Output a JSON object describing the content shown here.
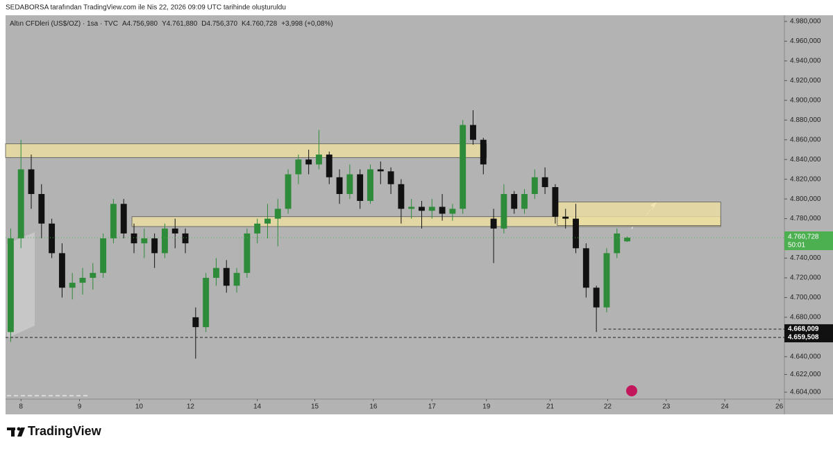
{
  "header": {
    "text": "SEDABORSA tarafından TradingView.com ile Nis 22, 2026 09:09 UTC tarihinde oluşturuldu"
  },
  "chart_data": {
    "type": "candlestick",
    "title": "Altın CFDleri (US$/OZ) · 1sa · TVC",
    "legend_items": [
      "A4.756,980",
      "Y4.761,880",
      "D4.756,370",
      "K4.760,728",
      "+3,998 (+0,08%)"
    ],
    "up_color": "#2e8b3a",
    "down_color": "#111111",
    "zone_color": "#ecdfa0",
    "x": [
      0,
      1,
      2,
      3,
      4,
      5,
      6,
      7,
      8,
      9,
      10,
      11,
      12,
      13,
      14,
      15,
      16,
      17,
      18,
      19,
      20,
      21,
      22,
      23,
      24,
      25,
      26,
      27,
      28,
      29,
      30,
      31,
      32,
      33,
      34,
      35,
      36,
      37,
      38,
      39,
      40,
      41,
      42,
      43,
      44,
      45,
      46,
      47,
      48,
      49,
      50,
      51,
      52,
      53,
      54,
      55,
      56,
      57,
      58,
      59,
      60
    ],
    "open": [
      4665,
      4760,
      4830,
      4805,
      4775,
      4745,
      4710,
      4715,
      4720,
      4725,
      4760,
      4795,
      4765,
      4755,
      4760,
      4745,
      4770,
      4765,
      4680,
      4670,
      4720,
      4730,
      4712,
      4725,
      4765,
      4775,
      4780,
      4790,
      4825,
      4840,
      4835,
      4845,
      4822,
      4805,
      4825,
      4798,
      4830,
      4828,
      4815,
      4790,
      4792,
      4788,
      4792,
      4785,
      4790,
      4875,
      4860,
      4780,
      4770,
      4805,
      4790,
      4805,
      4822,
      4812,
      4782,
      4780,
      4750,
      4710,
      4690,
      4745,
      4756.98
    ],
    "high": [
      4770,
      4860,
      4845,
      4815,
      4780,
      4755,
      4725,
      4730,
      4735,
      4765,
      4800,
      4800,
      4775,
      4770,
      4765,
      4775,
      4780,
      4770,
      4690,
      4725,
      4740,
      4738,
      4730,
      4770,
      4780,
      4795,
      4800,
      4830,
      4845,
      4850,
      4870,
      4848,
      4830,
      4835,
      4830,
      4835,
      4838,
      4832,
      4820,
      4800,
      4798,
      4800,
      4805,
      4795,
      4880,
      4890,
      4862,
      4790,
      4815,
      4808,
      4810,
      4830,
      4832,
      4815,
      4790,
      4795,
      4755,
      4712,
      4750,
      4770,
      4761.88
    ],
    "low": [
      4655,
      4750,
      4790,
      4760,
      4740,
      4700,
      4698,
      4703,
      4708,
      4720,
      4755,
      4760,
      4745,
      4740,
      4730,
      4740,
      4750,
      4745,
      4638,
      4665,
      4712,
      4705,
      4705,
      4720,
      4755,
      4760,
      4752,
      4785,
      4815,
      4825,
      4830,
      4815,
      4795,
      4800,
      4790,
      4795,
      4815,
      4805,
      4775,
      4780,
      4770,
      4780,
      4778,
      4778,
      4785,
      4855,
      4825,
      4735,
      4765,
      4785,
      4785,
      4800,
      4805,
      4775,
      4770,
      4745,
      4700,
      4665,
      4685,
      4740,
      4756.37
    ],
    "close": [
      4760,
      4830,
      4805,
      4775,
      4745,
      4710,
      4715,
      4720,
      4725,
      4760,
      4795,
      4765,
      4755,
      4760,
      4745,
      4770,
      4765,
      4755,
      4670,
      4720,
      4730,
      4712,
      4725,
      4765,
      4775,
      4780,
      4790,
      4825,
      4840,
      4835,
      4845,
      4822,
      4805,
      4825,
      4798,
      4830,
      4828,
      4815,
      4790,
      4792,
      4788,
      4792,
      4785,
      4790,
      4875,
      4860,
      4835,
      4770,
      4805,
      4790,
      4805,
      4822,
      4812,
      4782,
      4780,
      4750,
      4710,
      4690,
      4745,
      4765,
      4760.728
    ],
    "ylim": [
      4597.0,
      4986.3
    ],
    "yticks": [
      {
        "value": 4980,
        "label": "4.980,000"
      },
      {
        "value": 4960,
        "label": "4.960,000"
      },
      {
        "value": 4940,
        "label": "4.940,000"
      },
      {
        "value": 4920,
        "label": "4.920,000"
      },
      {
        "value": 4900,
        "label": "4.900,000"
      },
      {
        "value": 4880,
        "label": "4.880,000"
      },
      {
        "value": 4860,
        "label": "4.860,000"
      },
      {
        "value": 4840,
        "label": "4.840,000"
      },
      {
        "value": 4820,
        "label": "4.820,000"
      },
      {
        "value": 4800,
        "label": "4.800,000"
      },
      {
        "value": 4780,
        "label": "4.780,000"
      },
      {
        "value": 4760,
        "label": "4.760,000"
      },
      {
        "value": 4740,
        "label": "4.740,000"
      },
      {
        "value": 4720,
        "label": "4.720,000"
      },
      {
        "value": 4700,
        "label": "4.700,000"
      },
      {
        "value": 4680,
        "label": "4.680,000"
      },
      {
        "value": 4640,
        "label": "4.640,000"
      },
      {
        "value": 4622,
        "label": "4.622,000"
      },
      {
        "value": 4604,
        "label": "4.604,000"
      }
    ],
    "xlim": [
      -0.5,
      75.3
    ],
    "xticks": [
      {
        "value": 1.0,
        "label": "8"
      },
      {
        "value": 6.7,
        "label": "9"
      },
      {
        "value": 12.5,
        "label": "10"
      },
      {
        "value": 17.5,
        "label": "12"
      },
      {
        "value": 24.0,
        "label": "14"
      },
      {
        "value": 29.6,
        "label": "15"
      },
      {
        "value": 35.3,
        "label": "16"
      },
      {
        "value": 41.0,
        "label": "17"
      },
      {
        "value": 46.3,
        "label": "19"
      },
      {
        "value": 52.5,
        "label": "21"
      },
      {
        "value": 58.1,
        "label": "22"
      },
      {
        "value": 63.8,
        "label": "23"
      },
      {
        "value": 69.5,
        "label": "24"
      },
      {
        "value": 74.8,
        "label": "26"
      }
    ],
    "zones": [
      {
        "x": [
          -0.5,
          46.3
        ],
        "y": [
          4842,
          4856
        ]
      },
      {
        "x": [
          11.8,
          69.1
        ],
        "y": [
          4772,
          4782
        ]
      },
      {
        "x": [
          53.2,
          69.1
        ],
        "y": [
          4773,
          4797
        ]
      }
    ],
    "price_lines": [
      {
        "value": 4668.009,
        "label": "4.668,009",
        "x_start": 57.7
      },
      {
        "value": 4659.508,
        "label": "4.659,508",
        "x_start": -0.5
      }
    ],
    "last_price": {
      "value": 4760.728,
      "label": "4.760,728",
      "countdown": "50:01",
      "color": "#4caf50"
    }
  },
  "footer": {
    "brand": "TradingView"
  }
}
